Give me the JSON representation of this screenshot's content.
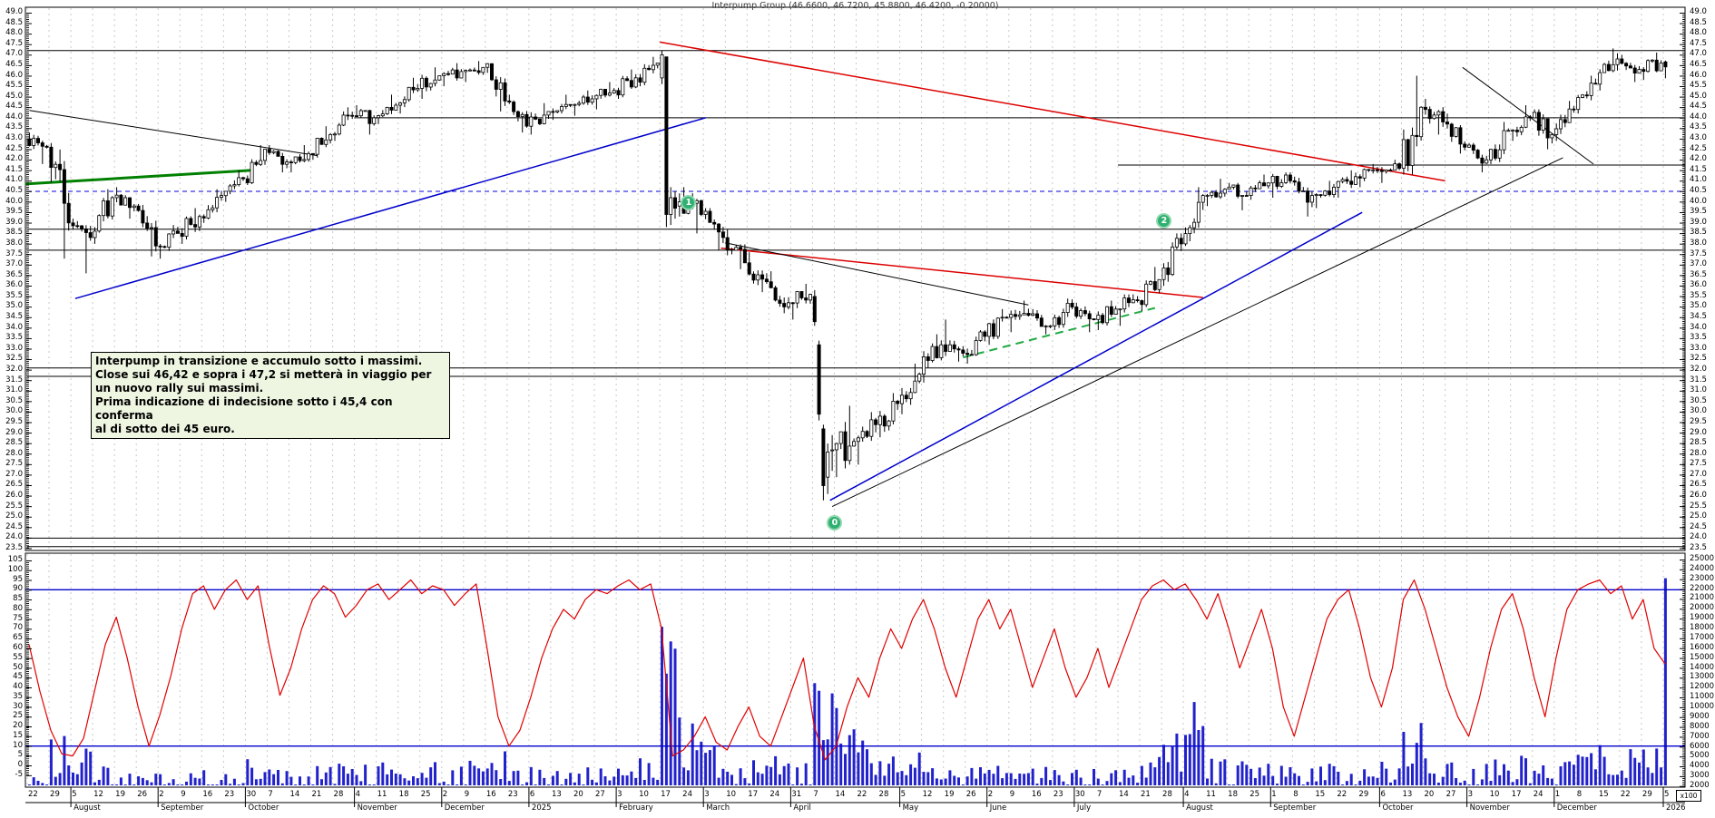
{
  "window": {
    "title": "Interpump Group (46.6600, 46.7200, 45.8800, 46.4200, -0.20000)"
  },
  "annotation": {
    "lines": [
      "Interpump in transizione e accumulo sotto i massimi.",
      "Close sui 46,42 e sopra i 47,2 si metterà in viaggio per",
      "un nuovo rally sui massimi.",
      "Prima indicazione di indecisione sotto i 45,4 con conferma",
      "al di sotto dei 45 euro."
    ]
  },
  "colors": {
    "candle_up": "#ffffff",
    "candle_down": "#000000",
    "candle_stroke": "#000000",
    "volume": "#2222cc",
    "oscillator": "#e00000",
    "osc_level": "#0000cc",
    "grid": "#c9c9c9",
    "hline": "#000000",
    "dashed_level": "#0000dd",
    "annotation_bg": "#eef6e2",
    "marker": "#2fb070",
    "marker_ring": "#90d8b0",
    "trend_red": "#dd0000",
    "trend_blue": "#0000cc",
    "trend_green": "#008000",
    "trend_green_dash": "#22aa44",
    "trend_black": "#000000"
  },
  "chart_data": {
    "type": "candlestick",
    "title": "Interpump Group (46.6600, 46.7200, 45.8800, 46.4200, -0.20000)",
    "initial_open": 43.0,
    "axes": {
      "price": {
        "min": 23.5,
        "max": 49.0,
        "step": 0.5
      },
      "oscillator": {
        "min": -5,
        "max": 105,
        "step": 5
      },
      "volume": {
        "min": 2000,
        "max": 25000,
        "step": 1000,
        "unit_label": "x100"
      }
    },
    "levels": {
      "osc_upper": 90,
      "osc_lower": 10
    },
    "x_axis": {
      "months": [
        {
          "label": "",
          "weeks": [
            "22",
            "29"
          ]
        },
        {
          "label": "August",
          "weeks": [
            "5",
            "12",
            "19",
            "26"
          ]
        },
        {
          "label": "September",
          "weeks": [
            "2",
            "9",
            "16",
            "23"
          ]
        },
        {
          "label": "October",
          "weeks": [
            "30",
            "7",
            "14",
            "21",
            "28"
          ]
        },
        {
          "label": "November",
          "weeks": [
            "4",
            "11",
            "18",
            "25"
          ]
        },
        {
          "label": "December",
          "weeks": [
            "2",
            "9",
            "16",
            "23"
          ]
        },
        {
          "label": "2025",
          "weeks": [
            "6",
            "13",
            "20",
            "27"
          ]
        },
        {
          "label": "February",
          "weeks": [
            "3",
            "10",
            "17",
            "24"
          ]
        },
        {
          "label": "March",
          "weeks": [
            "3",
            "10",
            "17",
            "24"
          ]
        },
        {
          "label": "April",
          "weeks": [
            "31",
            "7",
            "14",
            "22",
            "28"
          ]
        },
        {
          "label": "May",
          "weeks": [
            "5",
            "12",
            "19",
            "26"
          ]
        },
        {
          "label": "June",
          "weeks": [
            "2",
            "9",
            "16",
            "23"
          ]
        },
        {
          "label": "July",
          "weeks": [
            "30",
            "7",
            "14",
            "21",
            "28"
          ]
        },
        {
          "label": "August",
          "weeks": [
            "4",
            "11",
            "18",
            "25"
          ]
        },
        {
          "label": "September",
          "weeks": [
            "1",
            "8",
            "15",
            "22",
            "29"
          ]
        },
        {
          "label": "October",
          "weeks": [
            "6",
            "13",
            "20",
            "27"
          ]
        },
        {
          "label": "November",
          "weeks": [
            "3",
            "10",
            "17",
            "24"
          ]
        },
        {
          "label": "December",
          "weeks": [
            "1",
            "8",
            "15",
            "22",
            "29"
          ]
        },
        {
          "label": "2026",
          "weeks": [
            "5"
          ]
        }
      ]
    },
    "weekly_ohlc": [
      [
        43.3,
        41.8,
        42.6
      ],
      [
        42.8,
        37.3,
        39.0
      ],
      [
        39.2,
        36.6,
        38.3
      ],
      [
        40.6,
        38.0,
        40.2
      ],
      [
        40.7,
        39.2,
        39.8
      ],
      [
        39.9,
        37.4,
        37.9
      ],
      [
        38.9,
        37.3,
        38.5
      ],
      [
        39.7,
        38.0,
        39.3
      ],
      [
        40.6,
        39.0,
        40.3
      ],
      [
        41.5,
        40.0,
        41.1
      ],
      [
        42.7,
        40.8,
        42.5
      ],
      [
        42.7,
        41.4,
        41.9
      ],
      [
        42.7,
        41.4,
        42.3
      ],
      [
        43.6,
        42.0,
        43.2
      ],
      [
        44.5,
        42.9,
        44.1
      ],
      [
        44.6,
        43.2,
        44.0
      ],
      [
        45.1,
        43.7,
        44.6
      ],
      [
        45.9,
        44.2,
        45.4
      ],
      [
        46.4,
        44.9,
        46.0
      ],
      [
        46.6,
        45.5,
        46.2
      ],
      [
        46.7,
        45.7,
        46.4
      ],
      [
        46.6,
        44.3,
        44.8
      ],
      [
        45.1,
        43.3,
        43.6
      ],
      [
        44.7,
        43.2,
        44.3
      ],
      [
        45.1,
        43.9,
        44.6
      ],
      [
        45.3,
        44.1,
        44.9
      ],
      [
        45.7,
        44.4,
        45.3
      ],
      [
        46.3,
        44.9,
        45.9
      ],
      [
        46.9,
        45.5,
        46.6
      ],
      [
        47.2,
        38.8,
        40.0
      ],
      [
        40.7,
        38.5,
        39.4
      ],
      [
        39.7,
        37.7,
        38.3
      ],
      [
        38.7,
        36.8,
        37.1
      ],
      [
        37.6,
        35.7,
        36.2
      ],
      [
        36.7,
        34.7,
        35.2
      ],
      [
        36.1,
        34.4,
        35.6
      ],
      [
        35.8,
        25.8,
        28.2
      ],
      [
        30.3,
        26.9,
        28.6
      ],
      [
        30.0,
        27.5,
        29.4
      ],
      [
        30.9,
        28.8,
        30.4
      ],
      [
        32.3,
        29.9,
        31.8
      ],
      [
        33.7,
        31.4,
        33.2
      ],
      [
        34.4,
        32.4,
        32.8
      ],
      [
        33.9,
        32.3,
        33.6
      ],
      [
        34.9,
        33.2,
        34.5
      ],
      [
        35.3,
        33.8,
        34.6
      ],
      [
        34.9,
        33.7,
        34.1
      ],
      [
        35.4,
        33.9,
        35.0
      ],
      [
        35.2,
        33.8,
        34.4
      ],
      [
        35.3,
        33.9,
        34.9
      ],
      [
        35.6,
        34.1,
        35.3
      ],
      [
        36.9,
        34.8,
        36.3
      ],
      [
        38.5,
        36.0,
        38.0
      ],
      [
        40.7,
        37.9,
        40.3
      ],
      [
        41.1,
        39.8,
        40.6
      ],
      [
        40.9,
        39.6,
        40.3
      ],
      [
        41.3,
        40.1,
        40.9
      ],
      [
        41.4,
        40.2,
        41.0
      ],
      [
        41.2,
        39.3,
        40.3
      ],
      [
        41.0,
        39.7,
        40.7
      ],
      [
        41.5,
        40.2,
        41.2
      ],
      [
        41.8,
        40.7,
        41.5
      ],
      [
        42.0,
        40.9,
        41.6
      ],
      [
        46.0,
        41.3,
        44.5
      ],
      [
        44.9,
        43.2,
        43.8
      ],
      [
        44.2,
        42.3,
        42.6
      ],
      [
        42.8,
        41.4,
        42.0
      ],
      [
        43.8,
        41.8,
        43.4
      ],
      [
        44.6,
        42.9,
        44.0
      ],
      [
        44.4,
        42.5,
        43.2
      ],
      [
        44.8,
        42.9,
        44.4
      ],
      [
        46.0,
        44.2,
        45.6
      ],
      [
        47.3,
        45.3,
        46.8
      ],
      [
        47.0,
        45.7,
        46.3
      ],
      [
        47.1,
        45.8,
        46.6
      ]
    ],
    "explicit_weeks": {
      "29": [
        [
          45.9,
          47.2,
          45.6,
          47.0
        ],
        [
          46.9,
          46.9,
          38.8,
          39.4
        ],
        [
          39.4,
          40.7,
          38.9,
          40.2
        ],
        [
          40.2,
          40.5,
          39.2,
          39.7
        ],
        [
          39.8,
          40.4,
          39.3,
          40.0
        ]
      ],
      "36": [
        [
          35.5,
          35.8,
          34.1,
          34.3
        ],
        [
          33.2,
          33.4,
          29.6,
          29.9
        ],
        [
          29.2,
          29.4,
          25.8,
          26.5
        ],
        [
          26.9,
          28.5,
          26.1,
          28.1
        ],
        [
          28.2,
          28.9,
          27.2,
          28.2
        ]
      ]
    },
    "final_candle": {
      "open": 46.66,
      "high": 46.72,
      "low": 45.88,
      "close": 46.42,
      "volume": 23500
    },
    "weekly_volume_base": [
      2200,
      5200,
      4200,
      3000,
      2400,
      2600,
      2400,
      2300,
      2500,
      2800,
      3400,
      2600,
      2500,
      2700,
      3200,
      2800,
      3000,
      3300,
      3000,
      2800,
      3200,
      4200,
      3000,
      2600,
      2500,
      2600,
      2800,
      3000,
      3400,
      13000,
      6000,
      4200,
      3400,
      3200,
      3600,
      3000,
      12500,
      7000,
      5000,
      4200,
      3800,
      3400,
      3000,
      2800,
      3000,
      2800,
      2600,
      2400,
      2600,
      2400,
      2600,
      3400,
      5200,
      8000,
      3600,
      3000,
      3200,
      3000,
      3400,
      2800,
      2600,
      2800,
      3000,
      6400,
      3600,
      3200,
      3000,
      3200,
      3400,
      3000,
      3200,
      3800,
      4800,
      4200,
      5200
    ],
    "oscillator_samples": [
      62,
      38,
      18,
      6,
      5,
      14,
      38,
      62,
      76,
      55,
      30,
      10,
      26,
      46,
      70,
      88,
      92,
      80,
      90,
      95,
      85,
      92,
      62,
      36,
      50,
      70,
      85,
      92,
      88,
      76,
      82,
      90,
      93,
      85,
      90,
      95,
      88,
      92,
      90,
      82,
      88,
      93,
      60,
      25,
      10,
      18,
      35,
      55,
      70,
      80,
      75,
      85,
      90,
      88,
      92,
      95,
      90,
      93,
      70,
      5,
      8,
      15,
      25,
      12,
      8,
      20,
      30,
      15,
      10,
      25,
      40,
      55,
      20,
      3,
      10,
      30,
      45,
      35,
      55,
      70,
      60,
      75,
      85,
      70,
      50,
      35,
      55,
      75,
      85,
      70,
      80,
      60,
      40,
      55,
      70,
      50,
      35,
      45,
      60,
      40,
      55,
      70,
      85,
      92,
      95,
      90,
      93,
      85,
      75,
      88,
      70,
      50,
      65,
      80,
      60,
      30,
      15,
      35,
      55,
      75,
      85,
      90,
      70,
      45,
      30,
      50,
      85,
      95,
      80,
      60,
      40,
      25,
      15,
      35,
      60,
      80,
      88,
      70,
      45,
      25,
      55,
      80,
      90,
      93,
      95,
      88,
      92,
      75,
      85,
      60,
      52
    ],
    "hlines": [
      {
        "price": 47.2,
        "from_week": 0,
        "to_week": 76,
        "color": "#000000",
        "dash": null
      },
      {
        "price": 44.0,
        "from_week": 15,
        "to_week": 76,
        "color": "#000000",
        "dash": null
      },
      {
        "price": 41.75,
        "from_week": 50,
        "to_week": 76,
        "color": "#000000",
        "dash": null
      },
      {
        "price": 40.5,
        "from_week": 0,
        "to_week": 76,
        "color": "#0000dd",
        "dash": "5,4"
      },
      {
        "price": 38.7,
        "from_week": 0,
        "to_week": 76,
        "color": "#000000",
        "dash": null
      },
      {
        "price": 37.7,
        "from_week": 0,
        "to_week": 76,
        "color": "#000000",
        "dash": null
      },
      {
        "price": 32.1,
        "from_week": 0,
        "to_week": 76,
        "color": "#000000",
        "dash": null
      },
      {
        "price": 31.7,
        "from_week": 0,
        "to_week": 76,
        "color": "#000000",
        "dash": null
      },
      {
        "price": 24.0,
        "from_week": 0,
        "to_week": 76,
        "color": "#000000",
        "dash": null
      },
      {
        "price": 23.6,
        "from_week": 0,
        "to_week": 76,
        "color": "#000000",
        "dash": null
      }
    ],
    "trendlines": [
      {
        "name": "resistance-early",
        "w1": 0.1,
        "p1": 44.35,
        "w2": 13.3,
        "p2": 42.2,
        "color": "#000000",
        "width": 1,
        "dash": null
      },
      {
        "name": "green-support",
        "w1": -0.1,
        "p1": 40.85,
        "w2": 10.3,
        "p2": 41.5,
        "color": "#008000",
        "width": 3,
        "dash": null
      },
      {
        "name": "blue-uptrend-1",
        "w1": 2.2,
        "p1": 35.4,
        "w2": 31.1,
        "p2": 44.0,
        "color": "#0000cc",
        "width": 1.5,
        "dash": null
      },
      {
        "name": "red-downtrend-main",
        "w1": 29.0,
        "p1": 47.6,
        "w2": 65.0,
        "p2": 41.0,
        "color": "#dd0000",
        "width": 1.5,
        "dash": null
      },
      {
        "name": "red-wedge",
        "w1": 31.8,
        "p1": 37.8,
        "w2": 53.9,
        "p2": 35.45,
        "color": "#dd0000",
        "width": 1.5,
        "dash": null
      },
      {
        "name": "black-wedge",
        "w1": 32.0,
        "p1": 38.05,
        "w2": 45.9,
        "p2": 35.1,
        "color": "#000000",
        "width": 1,
        "dash": null
      },
      {
        "name": "green-dashed",
        "w1": 42.9,
        "p1": 32.6,
        "w2": 51.7,
        "p2": 34.95,
        "color": "#22aa44",
        "width": 2,
        "dash": "9,6"
      },
      {
        "name": "blue-uptrend-2",
        "w1": 36.8,
        "p1": 25.8,
        "w2": 61.2,
        "p2": 39.5,
        "color": "#0000cc",
        "width": 1.5,
        "dash": null
      },
      {
        "name": "black-uptrend-long",
        "w1": 36.9,
        "p1": 25.5,
        "w2": 70.4,
        "p2": 42.1,
        "color": "#000000",
        "width": 1,
        "dash": null
      },
      {
        "name": "black-triangle-down",
        "w1": 65.8,
        "p1": 46.4,
        "w2": 71.8,
        "p2": 41.8,
        "color": "#000000",
        "width": 1,
        "dash": null
      }
    ],
    "markers": [
      {
        "label": "1",
        "week": 30.3,
        "price": 40.0
      },
      {
        "label": "2",
        "week": 52.1,
        "price": 39.1
      },
      {
        "label": "0",
        "week": 37.0,
        "price": 24.75
      }
    ]
  }
}
